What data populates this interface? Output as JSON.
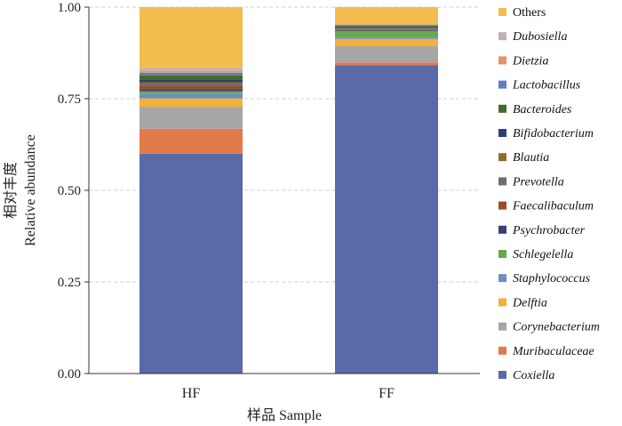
{
  "chart_data": {
    "type": "bar",
    "stacked": true,
    "categories": [
      "HF",
      "FF"
    ],
    "xlabel": "样品 Sample",
    "ylabel_cn": "相对丰度",
    "ylabel_en": "Relative abundance",
    "ylim": [
      0,
      1
    ],
    "yticks": [
      "0.00",
      "0.25",
      "0.50",
      "0.75",
      "1.00"
    ],
    "ytick_values": [
      0,
      0.25,
      0.5,
      0.75,
      1.0
    ],
    "grid": "horizontal dashed",
    "legend_position": "right",
    "series": [
      {
        "name": "Coxiella",
        "color": "#5a6aa8",
        "values": [
          0.6,
          0.841
        ]
      },
      {
        "name": "Muribaculaceae",
        "color": "#e07a4a",
        "values": [
          0.068,
          0.008
        ]
      },
      {
        "name": "Corynebacterium",
        "color": "#a6a6a6",
        "values": [
          0.06,
          0.044
        ]
      },
      {
        "name": "Delftia",
        "color": "#f2b03c",
        "values": [
          0.023,
          0.02
        ]
      },
      {
        "name": "Staphylococcus",
        "color": "#6b8ec6",
        "values": [
          0.013,
          0.004
        ]
      },
      {
        "name": "Schlegelella",
        "color": "#6aa84f",
        "values": [
          0.006,
          0.018
        ]
      },
      {
        "name": "Psychrobacter",
        "color": "#3b3f73",
        "values": [
          0.006,
          0.002
        ]
      },
      {
        "name": "Faecalibaculum",
        "color": "#9c4a2a",
        "values": [
          0.008,
          0.002
        ]
      },
      {
        "name": "Prevotella",
        "color": "#6e6e6e",
        "values": [
          0.006,
          0.002
        ]
      },
      {
        "name": "Blautia",
        "color": "#8c6d2a",
        "values": [
          0.005,
          0.002
        ]
      },
      {
        "name": "Bifidobacterium",
        "color": "#2d3f74",
        "values": [
          0.007,
          0.002
        ]
      },
      {
        "name": "Bacteroides",
        "color": "#3f6e2a",
        "values": [
          0.012,
          0.004
        ]
      },
      {
        "name": "Lactobacillus",
        "color": "#5c7fbf",
        "values": [
          0.007,
          0.002
        ]
      },
      {
        "name": "Dietzia",
        "color": "#e8906a",
        "values": [
          0.005,
          0.002
        ]
      },
      {
        "name": "Dubosiella",
        "color": "#bfb2b2",
        "values": [
          0.008,
          0.002
        ]
      },
      {
        "name": "Others",
        "color": "#f2bc4e",
        "values": [
          0.166,
          0.045
        ]
      }
    ]
  }
}
